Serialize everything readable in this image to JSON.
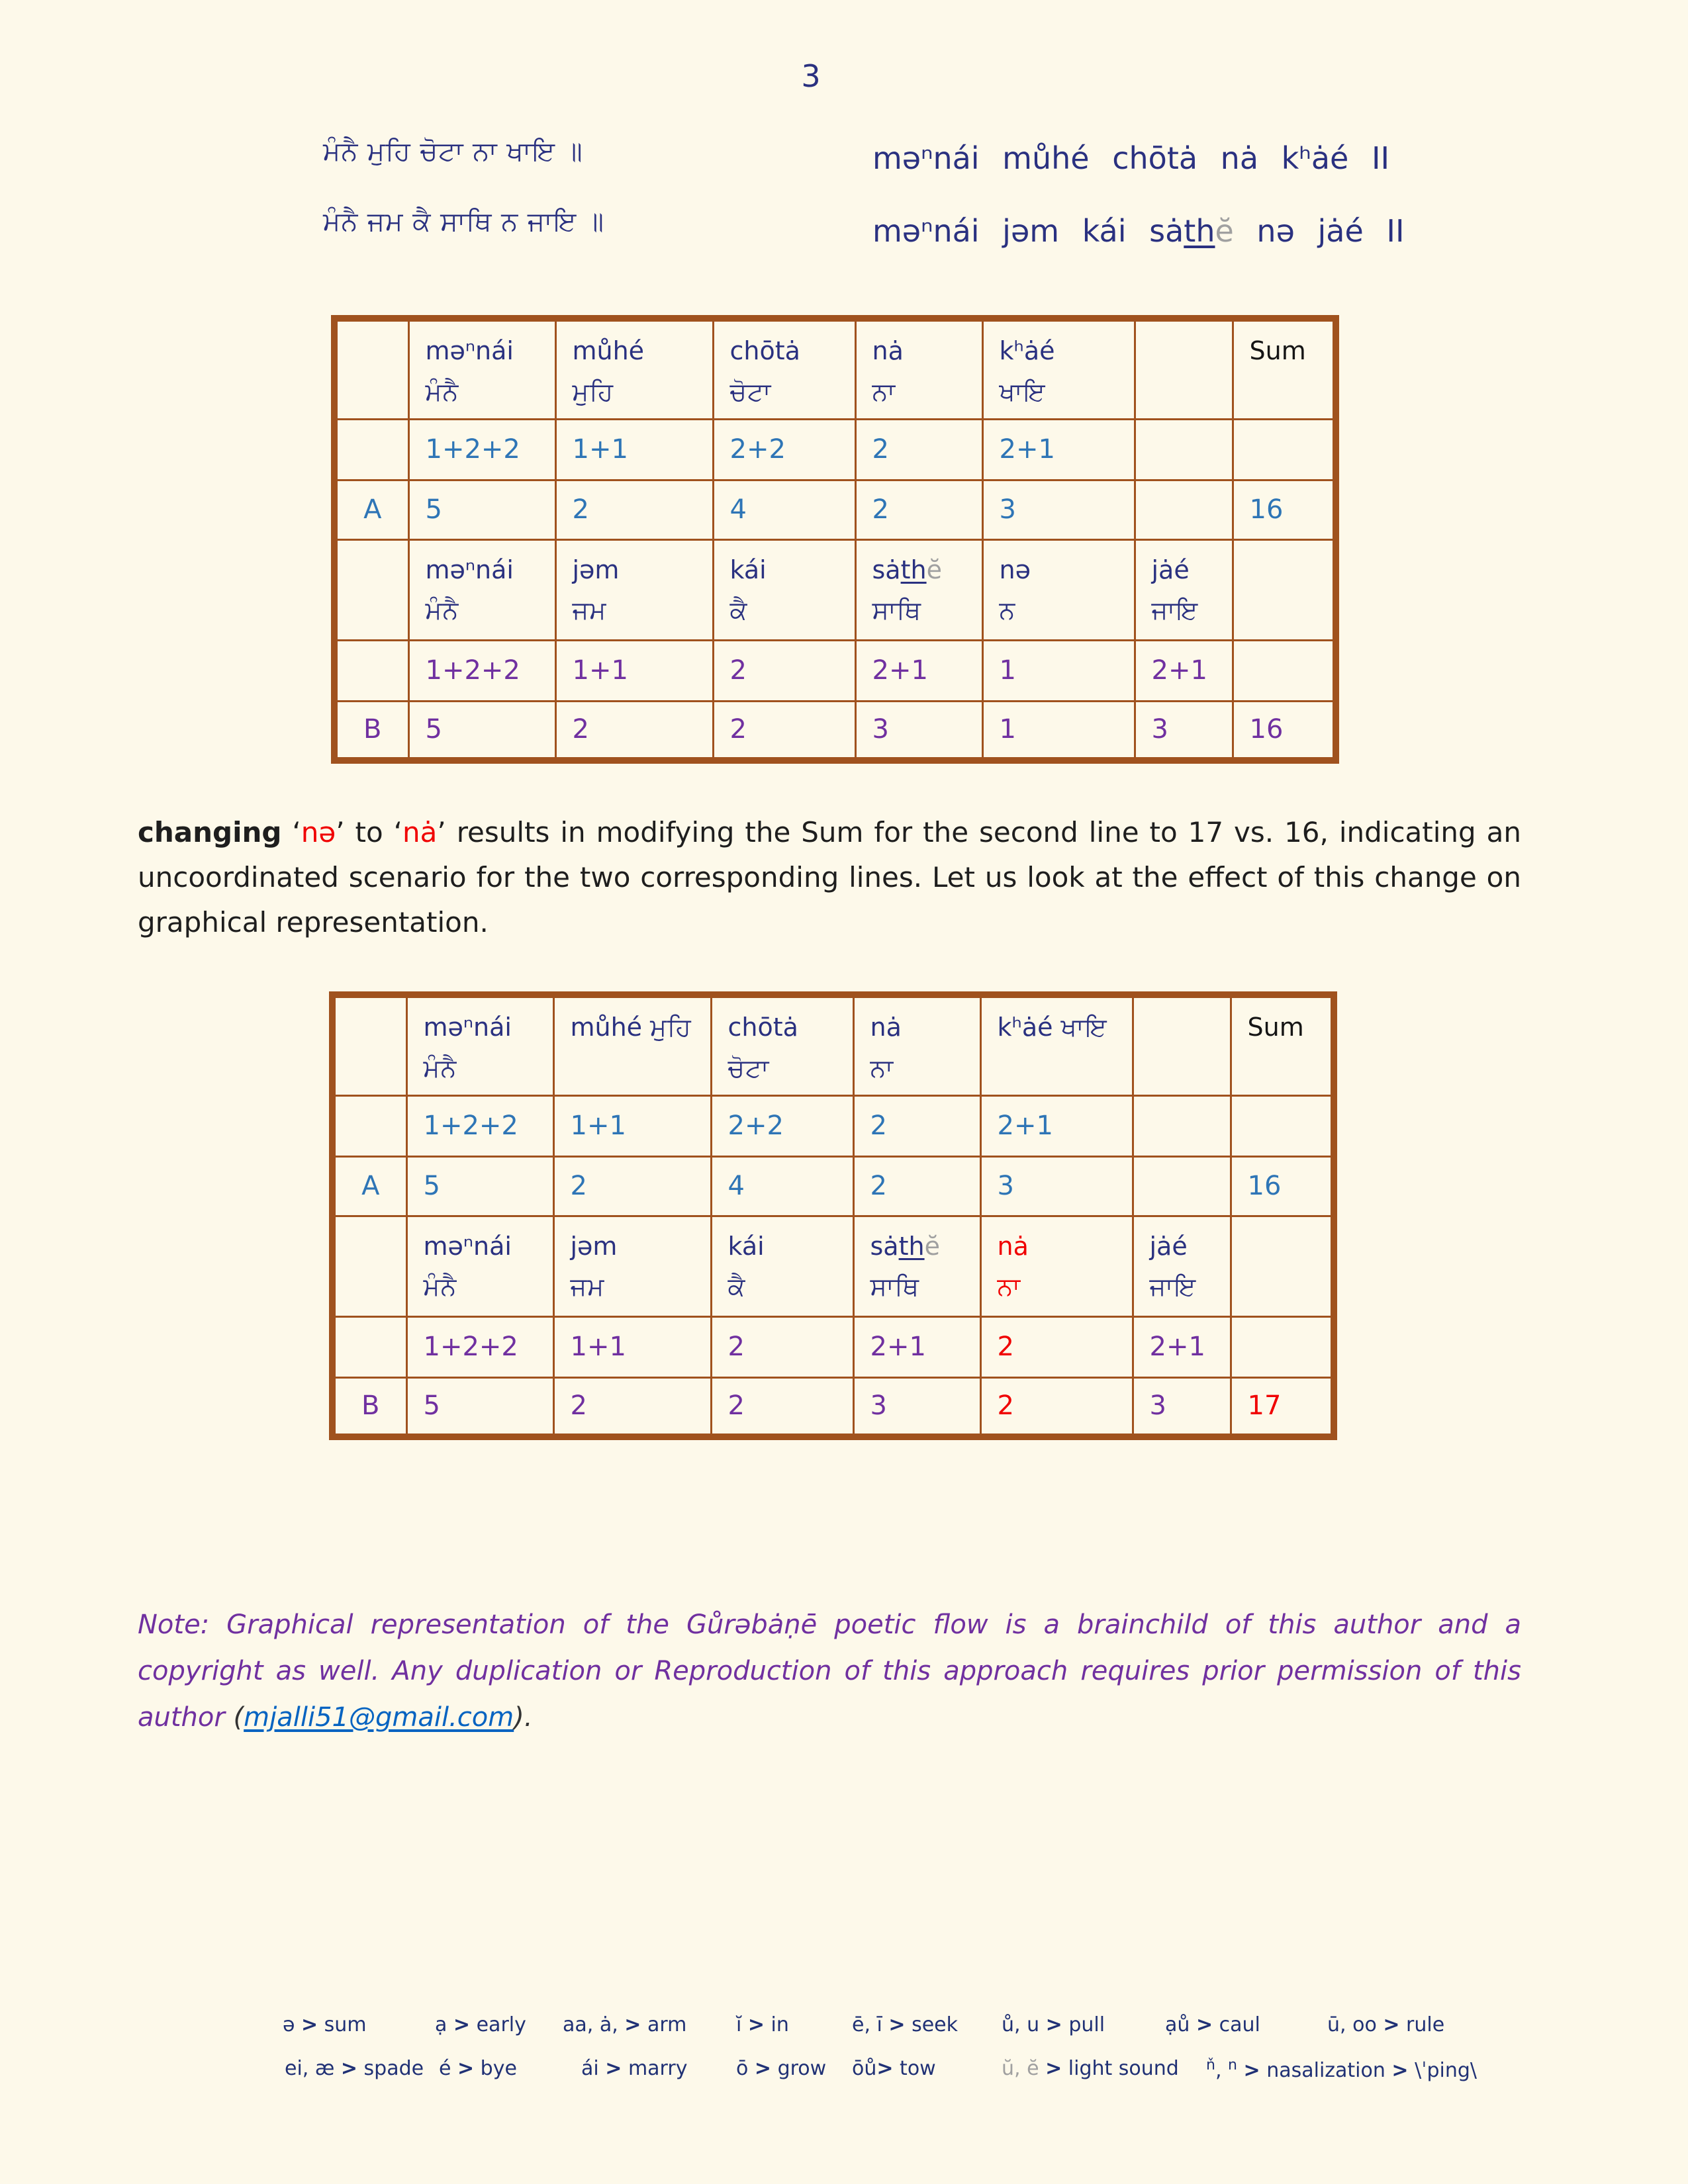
{
  "page_number": "3",
  "verse": {
    "line1": {
      "gurmukhi": "ਮੰਨੈ ਮੁਹਿ ਚੋਟਾ ਨਾ ਖਾਇ ॥",
      "translit_html": "məⁿnái můhé chōtȧ nȧ kʰȧé II"
    },
    "line2": {
      "gurmukhi": "ਮੰਨੈ ਜਮ ਕੈ ਸਾਥਿ ਨ ਜਾਇ ॥",
      "translit_html": "məⁿnái jəm kái sȧ<u>th</u><span class=gray>ĕ</span> nə jȧé II"
    }
  },
  "tables": [
    {
      "name": "syllable-table-original",
      "rows": [
        {
          "kind": "words",
          "cells": [
            {
              "h": ""
            },
            {
              "h": "məⁿnái<br><span class=gm>ਮੰਨੈ</span>"
            },
            {
              "h": "můhé<br><span class=gm>ਮੁਹਿ</span>"
            },
            {
              "h": "chōtȧ<br><span class=gm>ਚੋਟਾ</span>"
            },
            {
              "h": "nȧ<br><span class=gm>ਨਾ</span>"
            },
            {
              "h": "kʰȧé<br><span class=gm>ਖਾਇ</span>"
            },
            {
              "h": ""
            },
            {
              "h": "Sum",
              "c": "sum-head"
            }
          ]
        },
        {
          "kind": "counts",
          "cells": [
            {
              "h": ""
            },
            {
              "h": "1+2+2",
              "c": "blue"
            },
            {
              "h": "1+1",
              "c": "blue"
            },
            {
              "h": "2+2",
              "c": "blue"
            },
            {
              "h": "2",
              "c": "blue"
            },
            {
              "h": "2+1",
              "c": "blue"
            },
            {
              "h": ""
            },
            {
              "h": ""
            }
          ]
        },
        {
          "kind": "values",
          "cells": [
            {
              "h": "A",
              "c": "blue label"
            },
            {
              "h": "5",
              "c": "blue"
            },
            {
              "h": "2",
              "c": "blue"
            },
            {
              "h": "4",
              "c": "blue"
            },
            {
              "h": "2",
              "c": "blue"
            },
            {
              "h": "3",
              "c": "blue"
            },
            {
              "h": ""
            },
            {
              "h": "16",
              "c": "blue"
            }
          ]
        },
        {
          "kind": "words",
          "cells": [
            {
              "h": ""
            },
            {
              "h": "məⁿnái<br><span class=gm>ਮੰਨੈ</span>"
            },
            {
              "h": "jəm<br><span class=gm>ਜਮ</span>"
            },
            {
              "h": "kái<br><span class=gm>ਕੈ</span>"
            },
            {
              "h": "sȧ<u>th</u><span class=gray>ĕ</span><br><span class=gm>ਸਾਥਿ</span>"
            },
            {
              "h": "nə<br><span class=gm>ਨ</span>"
            },
            {
              "h": "jȧé<br><span class=gm>ਜਾਇ</span>"
            },
            {
              "h": ""
            }
          ]
        },
        {
          "kind": "counts",
          "cells": [
            {
              "h": ""
            },
            {
              "h": "1+2+2",
              "c": "purple"
            },
            {
              "h": "1+1",
              "c": "purple"
            },
            {
              "h": "2",
              "c": "purple"
            },
            {
              "h": "2+1",
              "c": "purple"
            },
            {
              "h": "1",
              "c": "purple"
            },
            {
              "h": "2+1",
              "c": "purple"
            },
            {
              "h": ""
            }
          ]
        },
        {
          "kind": "values",
          "cells": [
            {
              "h": "B",
              "c": "purple label"
            },
            {
              "h": "5",
              "c": "purple"
            },
            {
              "h": "2",
              "c": "purple"
            },
            {
              "h": "2",
              "c": "purple"
            },
            {
              "h": "3",
              "c": "purple"
            },
            {
              "h": "1",
              "c": "purple"
            },
            {
              "h": "3",
              "c": "purple"
            },
            {
              "h": "16",
              "c": "purple"
            }
          ]
        }
      ]
    },
    {
      "name": "syllable-table-modified",
      "rows": [
        {
          "kind": "words",
          "cells": [
            {
              "h": ""
            },
            {
              "h": "məⁿnái<br><span class=gm>ਮੰਨੈ</span>"
            },
            {
              "h": "můhé <span class=gm>ਮੁਹਿ</span>"
            },
            {
              "h": "chōtȧ<br><span class=gm>ਚੋਟਾ</span>"
            },
            {
              "h": "nȧ<br><span class=gm>ਨਾ</span>"
            },
            {
              "h": "kʰȧé <span class=gm>ਖਾਇ</span>"
            },
            {
              "h": ""
            },
            {
              "h": "Sum",
              "c": "sum-head"
            }
          ]
        },
        {
          "kind": "counts",
          "cells": [
            {
              "h": ""
            },
            {
              "h": "1+2+2",
              "c": "blue"
            },
            {
              "h": "1+1",
              "c": "blue"
            },
            {
              "h": "2+2",
              "c": "blue"
            },
            {
              "h": "2",
              "c": "blue"
            },
            {
              "h": "2+1",
              "c": "blue"
            },
            {
              "h": ""
            },
            {
              "h": ""
            }
          ]
        },
        {
          "kind": "values",
          "cells": [
            {
              "h": "A",
              "c": "blue label"
            },
            {
              "h": "5",
              "c": "blue"
            },
            {
              "h": "2",
              "c": "blue"
            },
            {
              "h": "4",
              "c": "blue"
            },
            {
              "h": "2",
              "c": "blue"
            },
            {
              "h": "3",
              "c": "blue"
            },
            {
              "h": ""
            },
            {
              "h": "16",
              "c": "blue"
            }
          ]
        },
        {
          "kind": "words",
          "cells": [
            {
              "h": ""
            },
            {
              "h": "məⁿnái<br><span class=gm>ਮੰਨੈ</span>"
            },
            {
              "h": "jəm<br><span class=gm>ਜਮ</span>"
            },
            {
              "h": "kái<br><span class=gm>ਕੈ</span>"
            },
            {
              "h": "sȧ<u>th</u><span class=gray>ĕ</span><br><span class=gm>ਸਾਥਿ</span>"
            },
            {
              "h": "nȧ<br><span class=gm>ਨਾ</span>",
              "c": "red"
            },
            {
              "h": "jȧé<br><span class=gm>ਜਾਇ</span>"
            },
            {
              "h": ""
            }
          ]
        },
        {
          "kind": "counts",
          "cells": [
            {
              "h": ""
            },
            {
              "h": "1+2+2",
              "c": "purple"
            },
            {
              "h": "1+1",
              "c": "purple"
            },
            {
              "h": "2",
              "c": "purple"
            },
            {
              "h": "2+1",
              "c": "purple"
            },
            {
              "h": "2",
              "c": "red"
            },
            {
              "h": "2+1",
              "c": "purple"
            },
            {
              "h": ""
            }
          ]
        },
        {
          "kind": "values",
          "cells": [
            {
              "h": "B",
              "c": "purple label"
            },
            {
              "h": "5",
              "c": "purple"
            },
            {
              "h": "2",
              "c": "purple"
            },
            {
              "h": "2",
              "c": "purple"
            },
            {
              "h": "3",
              "c": "purple"
            },
            {
              "h": "2",
              "c": "red"
            },
            {
              "h": "3",
              "c": "purple"
            },
            {
              "h": "17",
              "c": "red"
            }
          ]
        }
      ]
    }
  ],
  "paragraph_html": "<b>changing</b> ‘<span class=red>nə</span>’ to ‘<span class=red>nȧ</span>’ results in modifying the Sum for the second line to 17 vs. 16, indicating an uncoordinated scenario for the two corresponding lines. Let us look at the effect of this change on graphical representation.",
  "note_html": "Note: Graphical representation of the Gůrəbȧṇē poetic flow is a brainchild of this author and a copyright as well. Any duplication or Reproduction of this approach requires prior permission of this author <span class=dark>(</span><a data-name=email-link data-interactable=true>mjalli51@gmail.com</a><span class=dark>).</span>",
  "glossary": {
    "row1": [
      {
        "html": "ə <b>&gt;</b> sum"
      },
      {
        "html": "ạ <b>&gt;</b> early"
      },
      {
        "html": "aa, ȧ, <b>&gt;</b> arm"
      },
      {
        "html": "ĭ <b>&gt;</b> in"
      },
      {
        "html": "ē, ī <b>&gt;</b> seek"
      },
      {
        "html": "ů, u <b>&gt;</b> pull"
      },
      {
        "html": "ạů <b>&gt;</b> caul"
      },
      {
        "html": "ū, oo <b>&gt;</b> rule"
      }
    ],
    "row2": [
      {
        "html": "ei, æ <b>&gt;</b> spade"
      },
      {
        "html": "é <b>&gt;</b> bye"
      },
      {
        "html": "ái <b>&gt;</b> marry"
      },
      {
        "html": "ō <b>&gt;</b> grow"
      },
      {
        "html": "ōů<b>&gt;</b> tow"
      },
      {
        "html": "<span class=gray>ŭ, ĕ</span> <b>&gt;</b> light sound"
      },
      {
        "html": "<sup>ň</sup>, <sup>n</sup> <b>&gt;</b> nasalization <b>&gt;</b> \\ˈping\\"
      }
    ]
  }
}
